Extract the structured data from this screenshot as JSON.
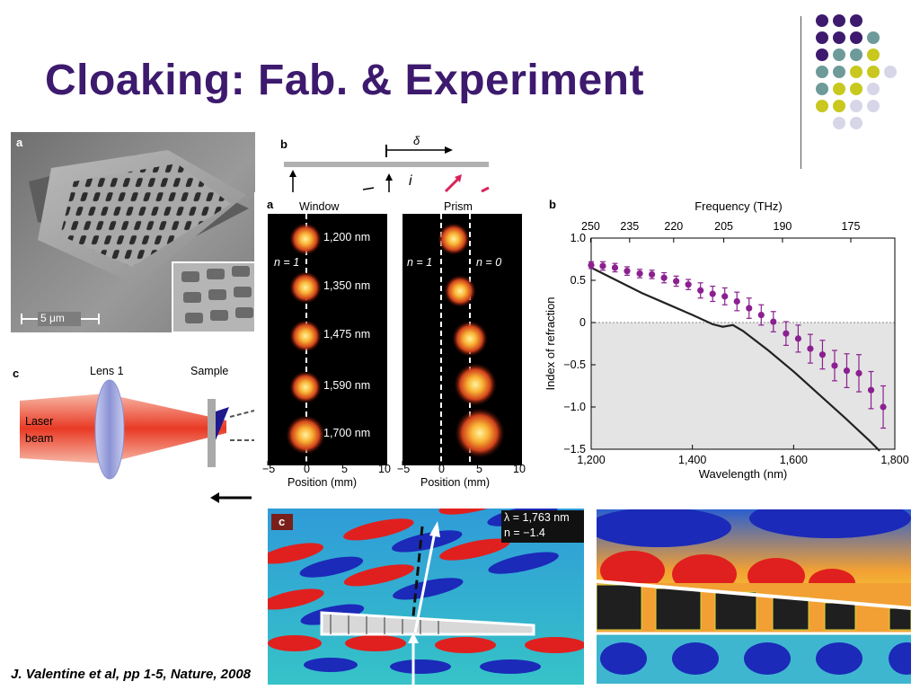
{
  "slide": {
    "title": "Cloaking: Fab. & Experiment",
    "citation": "J. Valentine et al, pp 1-5, Nature, 2008",
    "accent_color": "#3d1a6e"
  },
  "decor_dots": {
    "colors": {
      "purple": "#3d1a6e",
      "teal": "#6e9a9a",
      "yellow": "#c8c81e",
      "lavender": "#d6d6e8"
    },
    "rows": [
      [
        "purple",
        "purple",
        "purple"
      ],
      [
        "purple",
        "purple",
        "purple",
        "teal"
      ],
      [
        "purple",
        "teal",
        "teal",
        "yellow"
      ],
      [
        "teal",
        "teal",
        "yellow",
        "yellow",
        "lavender"
      ],
      [
        "teal",
        "yellow",
        "yellow",
        "lavender"
      ],
      [
        "yellow",
        "yellow",
        "lavender",
        "lavender"
      ],
      [
        "lavender",
        "lavender"
      ]
    ]
  },
  "fig_sem": {
    "letter": "a",
    "scalebar": "5 μm"
  },
  "fig_setup_b": {
    "letter": "b",
    "delta": "δ",
    "i_label": "i"
  },
  "fig_setup_c": {
    "letter": "c",
    "lens": "Lens 1",
    "sample": "Sample",
    "laser": "Laser",
    "beam": "beam"
  },
  "fig_spots": {
    "letter": "a",
    "window_title": "Window",
    "prism_title": "Prism",
    "n1_left": "n = 1",
    "n1_right": "n = 1",
    "n0": "n = 0",
    "wavelengths": [
      "1,200 nm",
      "1,350 nm",
      "1,475 nm",
      "1,590 nm",
      "1,700 nm"
    ],
    "x_ticks_left": [
      "−5",
      "0",
      "5",
      "10"
    ],
    "x_ticks_right": [
      "−5",
      "0",
      "5",
      "10"
    ],
    "xlabel_left": "Position (mm)",
    "xlabel_right": "Position (mm)"
  },
  "chart_data": {
    "type": "line",
    "letter": "b",
    "title": "",
    "xlabel": "Wavelength (nm)",
    "ylabel": "Index of refraction",
    "top_axis_label": "Frequency (THz)",
    "top_ticks": [
      "250",
      "235",
      "220",
      "205",
      "190",
      "175"
    ],
    "top_tick_positions_nm": [
      1199,
      1276,
      1363,
      1462,
      1578,
      1713
    ],
    "xlim": [
      1200,
      1800
    ],
    "ylim": [
      -1.5,
      1.0
    ],
    "x_ticks": [
      "1,200",
      "1,400",
      "1,600",
      "1,800"
    ],
    "x_tick_values": [
      1200,
      1400,
      1600,
      1800
    ],
    "y_ticks": [
      "1.0",
      "0.5",
      "0",
      "−0.5",
      "−1.0",
      "−1.5"
    ],
    "y_tick_values": [
      1.0,
      0.5,
      0,
      -0.5,
      -1.0,
      -1.5
    ],
    "shaded_below_zero": true,
    "series": [
      {
        "kind": "curve",
        "color": "#222222",
        "x": [
          1200,
          1250,
          1300,
          1350,
          1400,
          1440,
          1460,
          1480,
          1500,
          1550,
          1600,
          1650,
          1700,
          1750,
          1770
        ],
        "y": [
          0.65,
          0.5,
          0.35,
          0.22,
          0.09,
          -0.02,
          -0.05,
          -0.03,
          -0.1,
          -0.33,
          -0.58,
          -0.85,
          -1.12,
          -1.4,
          -1.52
        ]
      },
      {
        "kind": "points",
        "color": "#8b2090",
        "x": [
          1200,
          1223,
          1247,
          1271,
          1296,
          1320,
          1344,
          1368,
          1392,
          1416,
          1440,
          1464,
          1488,
          1512,
          1536,
          1560,
          1585,
          1609,
          1633,
          1657,
          1681,
          1705,
          1729,
          1753,
          1777
        ],
        "y": [
          0.68,
          0.67,
          0.65,
          0.61,
          0.58,
          0.57,
          0.53,
          0.49,
          0.45,
          0.38,
          0.34,
          0.31,
          0.25,
          0.17,
          0.09,
          0.01,
          -0.13,
          -0.19,
          -0.31,
          -0.38,
          -0.51,
          -0.57,
          -0.6,
          -0.8,
          -1.0
        ],
        "err": [
          0.04,
          0.05,
          0.05,
          0.05,
          0.05,
          0.05,
          0.06,
          0.06,
          0.06,
          0.09,
          0.09,
          0.1,
          0.11,
          0.12,
          0.12,
          0.12,
          0.14,
          0.16,
          0.17,
          0.17,
          0.18,
          0.2,
          0.22,
          0.22,
          0.25
        ]
      }
    ]
  },
  "fig_field": {
    "letter": "c",
    "lambda": "λ = 1,763 nm",
    "n_value": "n = −1.4"
  }
}
